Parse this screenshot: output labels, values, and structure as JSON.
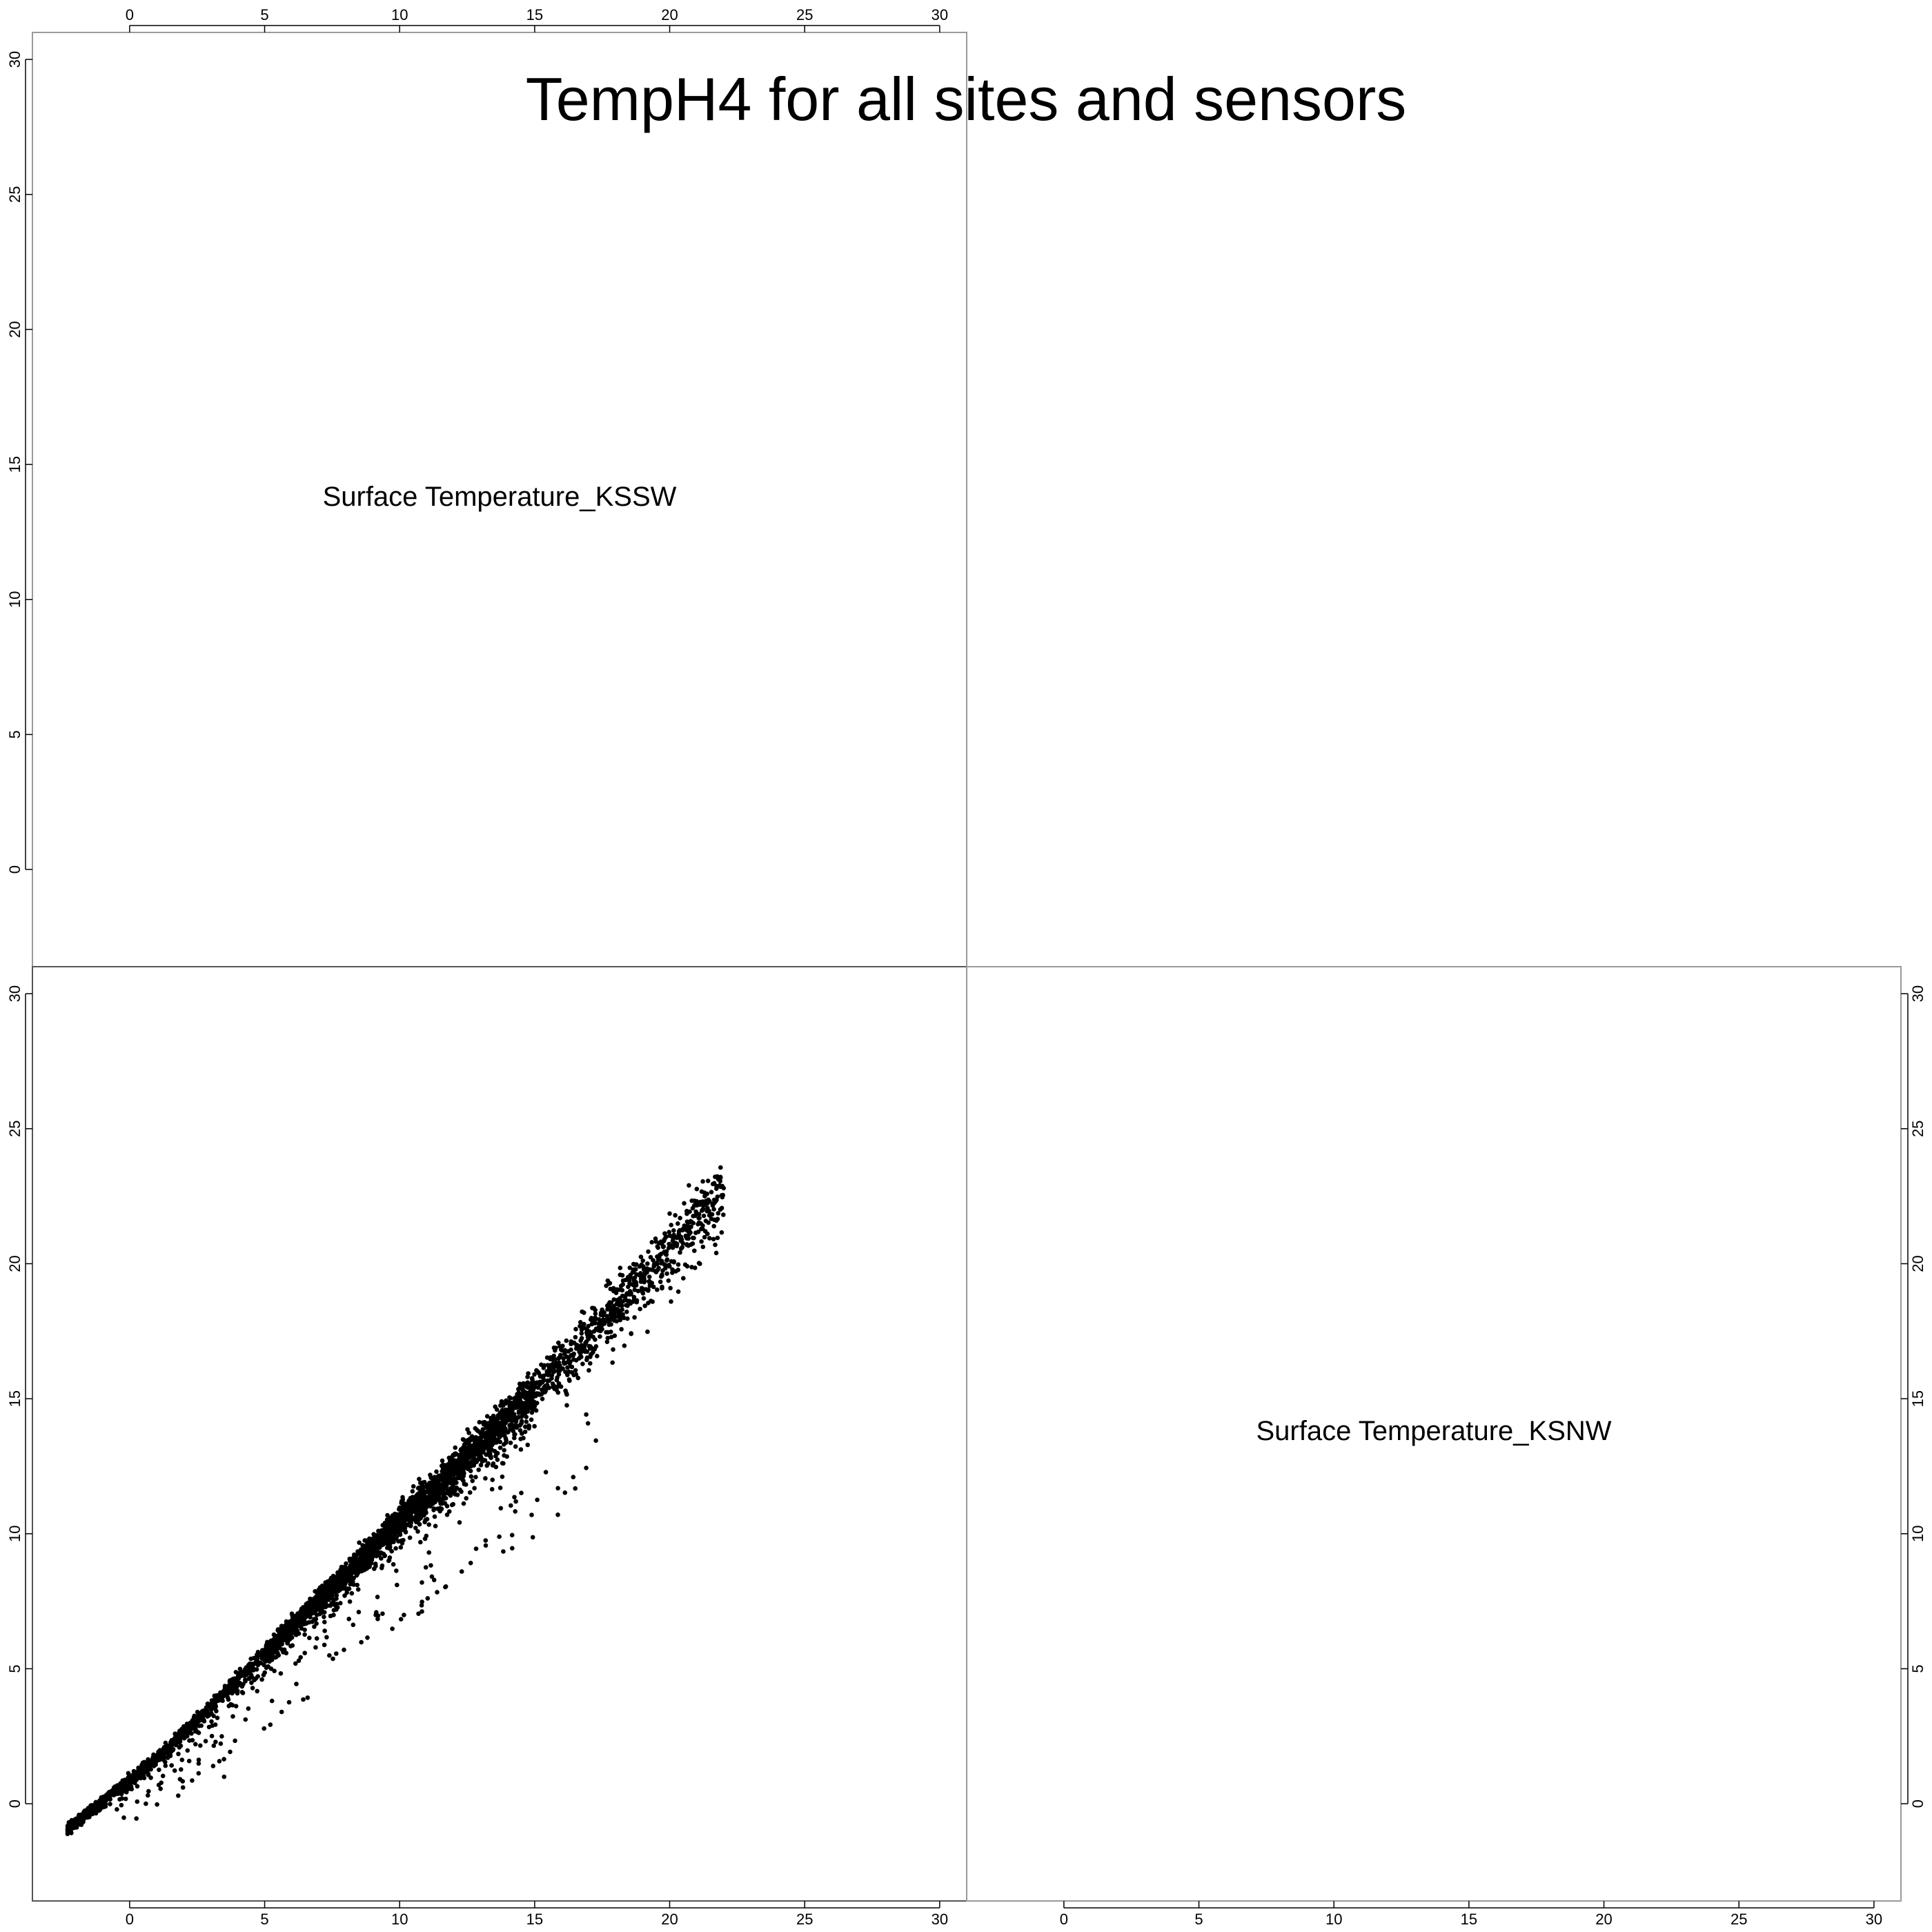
{
  "chart_data": {
    "type": "scatter",
    "title": "TempH4 for all sites and sensors",
    "variables": [
      "Surface Temperature_KSSW",
      "Surface Temperature_KSNW"
    ],
    "axis_range": [
      -3.6,
      31
    ],
    "ticks": [
      0,
      5,
      10,
      15,
      20,
      25,
      30
    ],
    "upper_right_panel": "empty",
    "grid": false,
    "point_color": "#000000",
    "seed": 20240607,
    "trend": {
      "x_range": [
        -2.3,
        22
      ],
      "segments": [
        {
          "x0": -2.3,
          "x1": 1.0,
          "y_at_x0": -0.9,
          "y_at_x1": 1.7
        },
        {
          "x0": 1.0,
          "x1": 5.0,
          "y_at_x0": 1.7,
          "y_at_x1": 5.6
        },
        {
          "x0": 5.0,
          "x1": 10.0,
          "y_at_x0": 5.6,
          "y_at_x1": 10.5
        },
        {
          "x0": 10.0,
          "x1": 15.0,
          "y_at_x0": 10.5,
          "y_at_x1": 15.3
        },
        {
          "x0": 15.0,
          "x1": 22.0,
          "y_at_x0": 15.3,
          "y_at_x1": 22.8
        }
      ]
    },
    "point_count": 4200,
    "outlier_count": 160,
    "notable_points": [
      {
        "x": 22.0,
        "y": 22.8
      },
      {
        "x": 21.3,
        "y": 22.5
      },
      {
        "x": 12.3,
        "y": 8.6
      },
      {
        "x": 13.6,
        "y": 14.6
      },
      {
        "x": 3.5,
        "y": 1.0
      },
      {
        "x": 0.6,
        "y": 0.0
      },
      {
        "x": 1.8,
        "y": 0.3
      },
      {
        "x": 9.9,
        "y": 8.1
      }
    ]
  }
}
